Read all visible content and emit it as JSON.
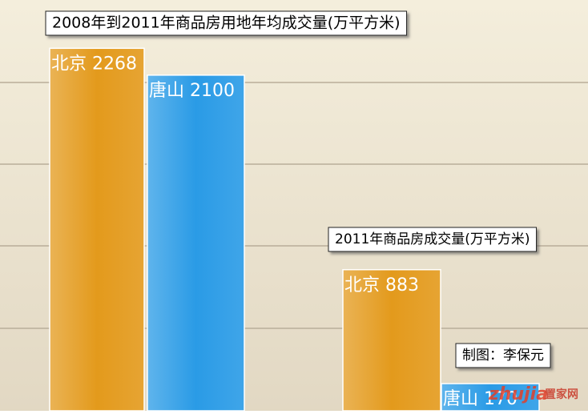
{
  "chart_data": [
    {
      "type": "bar",
      "title": "2008年到2011年商品房用地年均成交量(万平方米)",
      "categories": [
        "北京",
        "唐山"
      ],
      "values": [
        2268,
        2100
      ],
      "colors": [
        "#e39a1c",
        "#2a9be6"
      ],
      "ylim": [
        0,
        2500
      ]
    },
    {
      "type": "bar",
      "title": "2011年商品房成交量(万平方米)",
      "categories": [
        "北京",
        "唐山"
      ],
      "values": [
        883,
        170
      ],
      "colors": [
        "#e39a1c",
        "#2a9be6"
      ],
      "ylim": [
        0,
        2500
      ],
      "annotation": "制图：李保元",
      "watermark": [
        "zhujia",
        "置家网"
      ]
    }
  ]
}
